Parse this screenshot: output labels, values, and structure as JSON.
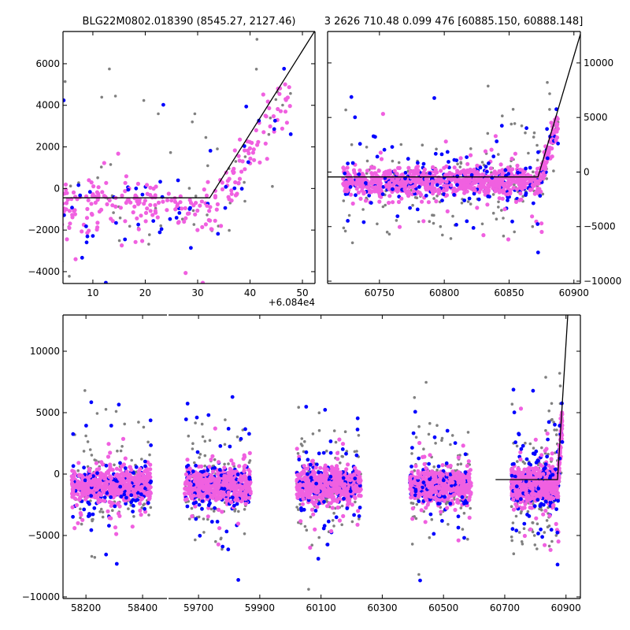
{
  "chart_data": {
    "type": "scatter",
    "title_left": "BLG22M0802.018390 (8545.27, 2127.46)",
    "title_right": "3 2626 710.48 0.099 476 [60885.150, 60888.148]",
    "colors": {
      "magenta": "#f060e0",
      "blue": "#0000ff",
      "gray": "#808080",
      "model": "#000000"
    },
    "model": {
      "t0": 60872.3,
      "baseline": -450,
      "slope_per_day": 400,
      "start": 60670
    },
    "seasons": [
      {
        "start": 58150,
        "end": 58430,
        "n": 900
      },
      {
        "start": 59655,
        "end": 59870,
        "n": 900
      },
      {
        "start": 60020,
        "end": 60230,
        "n": 900
      },
      {
        "start": 60390,
        "end": 60590,
        "n": 800
      },
      {
        "start": 60722,
        "end": 60888,
        "n": 1300
      }
    ],
    "panels": [
      {
        "id": "zoom-peak",
        "xlim": [
          60844.3,
          60892.4
        ],
        "ylim": [
          -4570,
          7550
        ],
        "x_offset": 60840,
        "xticks": [
          10,
          20,
          30,
          40,
          50
        ],
        "xtick_labels": [
          "10",
          "20",
          "30",
          "40",
          "50"
        ],
        "offset_text": "+6.084e4",
        "yticks": [
          -4000,
          -2000,
          0,
          2000,
          4000,
          6000
        ],
        "ytick_labels": [
          "−4000",
          "−2000",
          "0",
          "2000",
          "4000",
          "6000"
        ],
        "ylabel_side": "left"
      },
      {
        "id": "final-season",
        "xlim": [
          60710,
          60905
        ],
        "ylim": [
          -10215,
          12880
        ],
        "xticks": [
          60750,
          60800,
          60850,
          60900
        ],
        "xtick_labels": [
          "60750",
          "60800",
          "60850",
          "60900"
        ],
        "yticks": [
          -10000,
          -5000,
          0,
          5000,
          10000
        ],
        "ytick_labels": [
          "−10000",
          "−5000",
          "0",
          "5000",
          "10000"
        ],
        "ylabel_side": "right"
      },
      {
        "id": "full-lightcurve-a",
        "xlim": [
          58119,
          58486
        ],
        "ylim": [
          -10130,
          12950
        ],
        "xticks": [
          58200,
          58400
        ],
        "xtick_labels": [
          "58200",
          "58400"
        ],
        "yticks": [
          -10000,
          -5000,
          0,
          5000,
          10000
        ],
        "ytick_labels": [
          "−10000",
          "−5000",
          "0",
          "5000",
          "10000"
        ],
        "ylabel_side": "left"
      },
      {
        "id": "full-lightcurve-b",
        "xlim": [
          59602,
          60947
        ],
        "ylim": [
          -10130,
          12950
        ],
        "xticks": [
          59700,
          59900,
          60100,
          60300,
          60500,
          60700,
          60900
        ],
        "xtick_labels": [
          "59700",
          "59900",
          "60100",
          "60300",
          "60500",
          "60700",
          "60900"
        ],
        "yticks": [
          -10000,
          -5000,
          0,
          5000,
          10000
        ],
        "ytick_labels": [],
        "ylabel_side": "none"
      }
    ]
  }
}
